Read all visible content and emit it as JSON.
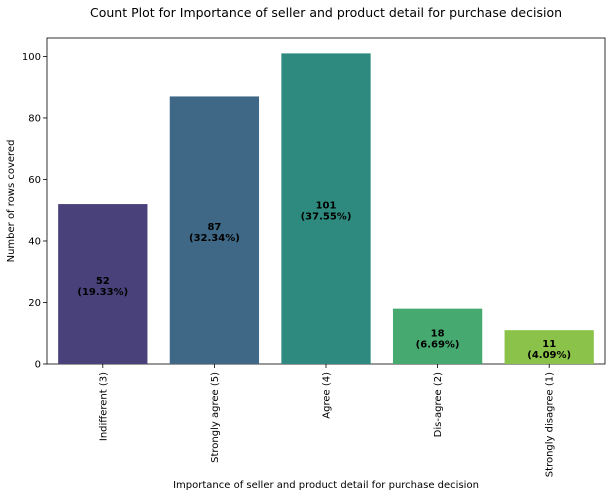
{
  "chart_data": {
    "type": "bar",
    "title": "Count Plot for Importance of seller and product detail for purchase decision",
    "xlabel": "Importance of seller and product detail for purchase decision",
    "ylabel": "Number of rows covered",
    "categories": [
      "Indifferent (3)",
      "Strongly agree (5)",
      "Agree (4)",
      "Dis-agree (2)",
      "Strongly disagree (1)"
    ],
    "values": [
      52,
      87,
      101,
      18,
      11
    ],
    "percent_labels": [
      "(19.33%)",
      "(32.34%)",
      "(37.55%)",
      "(6.69%)",
      "(4.09%)"
    ],
    "colors": [
      "#48417a",
      "#3e6885",
      "#2e8a7e",
      "#46a970",
      "#8bc34a"
    ],
    "ylim": [
      0,
      106
    ],
    "yticks": [
      0,
      20,
      40,
      60,
      80,
      100
    ],
    "grid": false,
    "legend": "none"
  }
}
